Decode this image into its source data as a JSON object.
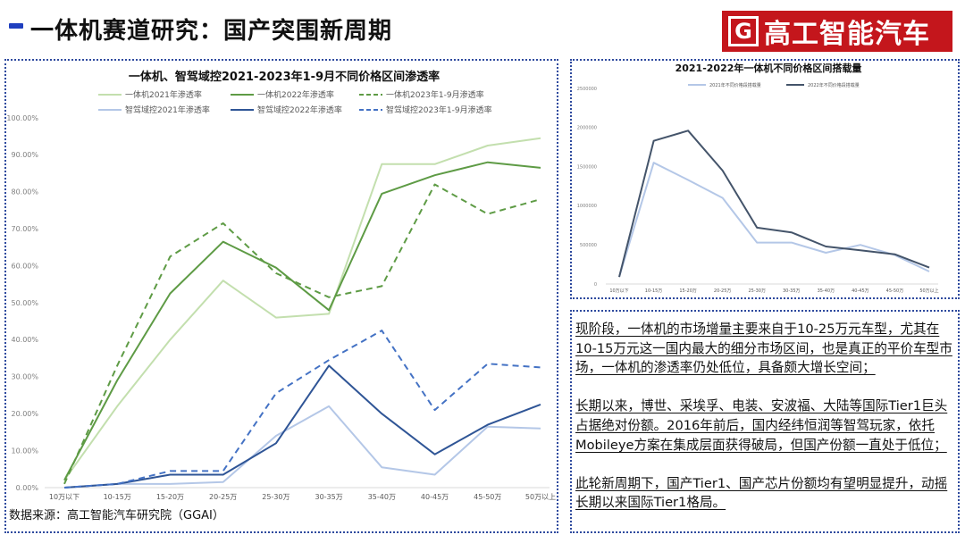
{
  "page": {
    "title": "一体机赛道研究：国产突围新周期",
    "logo_mark": "G",
    "logo_text": "高工智能汽车",
    "source_note": "数据来源：高工智能汽车研究院（GGAI）",
    "accent_color": "#1f3fbf",
    "logo_color": "#c4161c"
  },
  "chart_data": [
    {
      "type": "line",
      "title": "一体机、智驾域控2021-2023年1-9月不同价格区间渗透率",
      "xlabel": "",
      "ylabel": "",
      "categories": [
        "10万以下",
        "10-15万",
        "15-20万",
        "20-25万",
        "25-30万",
        "30-35万",
        "35-40万",
        "40-45万",
        "45-50万",
        "50万以上"
      ],
      "ylim": [
        0,
        100
      ],
      "yticks": [
        "0.00%",
        "10.00%",
        "20.00%",
        "30.00%",
        "40.00%",
        "50.00%",
        "60.00%",
        "70.00%",
        "80.00%",
        "90.00%",
        "100.00%"
      ],
      "grid": false,
      "legend_position": "top",
      "series": [
        {
          "name": "一体机2021年渗透率",
          "color": "#c3dfae",
          "dash": false,
          "values": [
            2,
            22,
            40,
            56,
            46,
            47,
            87.5,
            87.5,
            92.5,
            94.5
          ]
        },
        {
          "name": "一体机2022年渗透率",
          "color": "#5e9b45",
          "dash": false,
          "values": [
            2,
            29,
            52.5,
            66.5,
            59.5,
            48,
            79.5,
            84.5,
            88,
            86.5
          ]
        },
        {
          "name": "一体机2023年1-9月渗透率",
          "color": "#5e9b45",
          "dash": true,
          "values": [
            1,
            33,
            62.5,
            71.5,
            58,
            51.5,
            54.5,
            82,
            74,
            78
          ]
        },
        {
          "name": "智驾域控2021年渗透率",
          "color": "#b4c7e7",
          "dash": false,
          "values": [
            0,
            1,
            1,
            1.5,
            14,
            22,
            5.5,
            3.5,
            16.5,
            16
          ]
        },
        {
          "name": "智驾域控2022年渗透率",
          "color": "#2f5596",
          "dash": false,
          "values": [
            0,
            1,
            3.5,
            3.5,
            12,
            33,
            20,
            9,
            17,
            22.5
          ]
        },
        {
          "name": "智驾域控2023年1-9月渗透率",
          "color": "#4472c4",
          "dash": true,
          "values": [
            0,
            1,
            4.5,
            4.5,
            25.5,
            34.5,
            42.5,
            21,
            33.5,
            32.5
          ]
        }
      ]
    },
    {
      "type": "line",
      "title": "2021-2022年一体机不同价格区间搭载量",
      "xlabel": "",
      "ylabel": "",
      "categories": [
        "10万以下",
        "10-15万",
        "15-20万",
        "20-25万",
        "25-30万",
        "30-35万",
        "35-40万",
        "40-45万",
        "45-50万",
        "50万以上"
      ],
      "ylim": [
        0,
        2500000
      ],
      "yticks": [
        "0",
        "500000",
        "1000000",
        "1500000",
        "2000000",
        "2500000"
      ],
      "grid": false,
      "legend_position": "top",
      "series": [
        {
          "name": "2021年不同价格段搭载量",
          "color": "#b4c7e7",
          "values": [
            90000,
            1550000,
            1330000,
            1100000,
            530000,
            530000,
            400000,
            500000,
            370000,
            160000
          ]
        },
        {
          "name": "2022年不同价格段搭载量",
          "color": "#44546a",
          "values": [
            90000,
            1830000,
            1960000,
            1450000,
            720000,
            660000,
            480000,
            430000,
            380000,
            210000
          ]
        }
      ]
    }
  ],
  "text_panel": {
    "paragraphs": [
      "现阶段，一体机的市场增量主要来自于10-25万元车型，尤其在10-15万元这一国内最大的细分市场区间，也是真正的平价车型市场，一体机的渗透率仍处低位，具备颇大增长空间；",
      "长期以来，博世、采埃孚、电装、安波福、大陆等国际Tier1巨头占据绝对份额。2016年前后，国内经纬恒润等智驾玩家，依托Mobileye方案在集成层面获得破局，但国产份额一直处于低位；",
      "此轮新周期下，国产Tier1、国产芯片份额均有望明显提升，动摇长期以来国际Tier1格局。"
    ]
  }
}
